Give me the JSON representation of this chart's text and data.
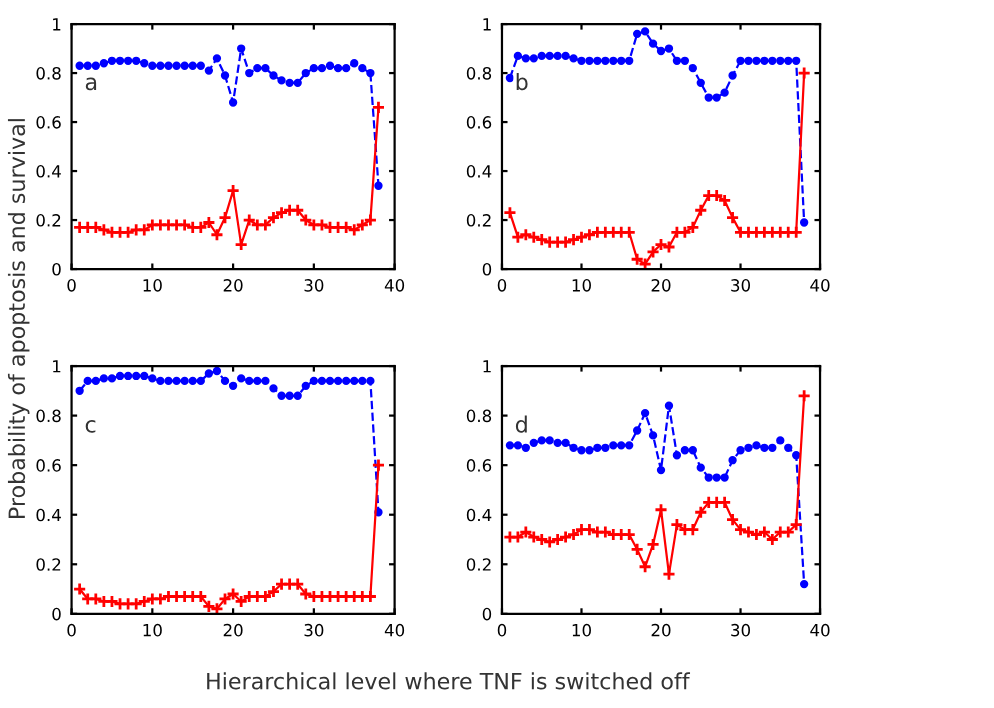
{
  "chart_data": [
    {
      "type": "line",
      "annotations": [
        "a"
      ],
      "xlabel": "Hierarchical level where TNF is switched off",
      "ylabel": "Probability of apoptosis and survival",
      "x": [
        1,
        2,
        3,
        4,
        5,
        6,
        7,
        8,
        9,
        10,
        11,
        12,
        13,
        14,
        15,
        16,
        17,
        18,
        19,
        20,
        21,
        22,
        23,
        24,
        25,
        26,
        27,
        28,
        29,
        30,
        31,
        32,
        33,
        34,
        35,
        36,
        37,
        38
      ],
      "xlim": [
        0,
        40
      ],
      "xticks": [
        0,
        10,
        20,
        30,
        40
      ],
      "ylim": [
        0,
        1
      ],
      "yticks": [
        0,
        0.2,
        0.4,
        0.6,
        0.8,
        1
      ],
      "series": [
        {
          "color": "#0000ff",
          "marker": "circle",
          "line_style": "dashed",
          "values": [
            0.83,
            0.83,
            0.83,
            0.84,
            0.85,
            0.85,
            0.85,
            0.85,
            0.84,
            0.83,
            0.83,
            0.83,
            0.83,
            0.83,
            0.83,
            0.83,
            0.81,
            0.86,
            0.79,
            0.68,
            0.9,
            0.8,
            0.82,
            0.82,
            0.79,
            0.77,
            0.76,
            0.76,
            0.8,
            0.82,
            0.82,
            0.83,
            0.82,
            0.82,
            0.84,
            0.82,
            0.8,
            0.34
          ]
        },
        {
          "color": "#ff0000",
          "marker": "cross",
          "line_style": "solid",
          "values": [
            0.17,
            0.17,
            0.17,
            0.16,
            0.15,
            0.15,
            0.15,
            0.16,
            0.16,
            0.18,
            0.18,
            0.18,
            0.18,
            0.18,
            0.17,
            0.17,
            0.19,
            0.14,
            0.21,
            0.32,
            0.1,
            0.2,
            0.18,
            0.18,
            0.21,
            0.23,
            0.24,
            0.24,
            0.2,
            0.18,
            0.18,
            0.17,
            0.17,
            0.17,
            0.16,
            0.18,
            0.2,
            0.66
          ]
        }
      ]
    },
    {
      "type": "line",
      "annotations": [
        "b"
      ],
      "x": [
        1,
        2,
        3,
        4,
        5,
        6,
        7,
        8,
        9,
        10,
        11,
        12,
        13,
        14,
        15,
        16,
        17,
        18,
        19,
        20,
        21,
        22,
        23,
        24,
        25,
        26,
        27,
        28,
        29,
        30,
        31,
        32,
        33,
        34,
        35,
        36,
        37,
        38
      ],
      "xlim": [
        0,
        40
      ],
      "xticks": [
        0,
        10,
        20,
        30,
        40
      ],
      "ylim": [
        0,
        1
      ],
      "yticks": [
        0,
        0.2,
        0.4,
        0.6,
        0.8,
        1
      ],
      "series": [
        {
          "color": "#0000ff",
          "marker": "circle",
          "line_style": "dashed",
          "values": [
            0.78,
            0.87,
            0.86,
            0.86,
            0.87,
            0.87,
            0.87,
            0.87,
            0.86,
            0.85,
            0.85,
            0.85,
            0.85,
            0.85,
            0.85,
            0.85,
            0.96,
            0.97,
            0.92,
            0.89,
            0.9,
            0.85,
            0.85,
            0.82,
            0.76,
            0.7,
            0.7,
            0.72,
            0.79,
            0.85,
            0.85,
            0.85,
            0.85,
            0.85,
            0.85,
            0.85,
            0.85,
            0.19
          ]
        },
        {
          "color": "#ff0000",
          "marker": "cross",
          "line_style": "solid",
          "values": [
            0.23,
            0.13,
            0.14,
            0.13,
            0.12,
            0.11,
            0.11,
            0.11,
            0.12,
            0.13,
            0.14,
            0.15,
            0.15,
            0.15,
            0.15,
            0.15,
            0.04,
            0.02,
            0.07,
            0.1,
            0.09,
            0.15,
            0.15,
            0.17,
            0.24,
            0.3,
            0.3,
            0.28,
            0.21,
            0.15,
            0.15,
            0.15,
            0.15,
            0.15,
            0.15,
            0.15,
            0.15,
            0.8
          ]
        }
      ]
    },
    {
      "type": "line",
      "annotations": [
        "c"
      ],
      "x": [
        1,
        2,
        3,
        4,
        5,
        6,
        7,
        8,
        9,
        10,
        11,
        12,
        13,
        14,
        15,
        16,
        17,
        18,
        19,
        20,
        21,
        22,
        23,
        24,
        25,
        26,
        27,
        28,
        29,
        30,
        31,
        32,
        33,
        34,
        35,
        36,
        37,
        38
      ],
      "xlim": [
        0,
        40
      ],
      "xticks": [
        0,
        10,
        20,
        30,
        40
      ],
      "ylim": [
        0,
        1
      ],
      "yticks": [
        0,
        0.2,
        0.4,
        0.6,
        0.8,
        1
      ],
      "series": [
        {
          "color": "#0000ff",
          "marker": "circle",
          "line_style": "dashed",
          "values": [
            0.9,
            0.94,
            0.94,
            0.95,
            0.95,
            0.96,
            0.96,
            0.96,
            0.96,
            0.95,
            0.94,
            0.94,
            0.94,
            0.94,
            0.94,
            0.94,
            0.97,
            0.98,
            0.94,
            0.92,
            0.95,
            0.94,
            0.94,
            0.94,
            0.91,
            0.88,
            0.88,
            0.88,
            0.92,
            0.94,
            0.94,
            0.94,
            0.94,
            0.94,
            0.94,
            0.94,
            0.94,
            0.41
          ]
        },
        {
          "color": "#ff0000",
          "marker": "cross",
          "line_style": "solid",
          "values": [
            0.1,
            0.06,
            0.06,
            0.05,
            0.05,
            0.04,
            0.04,
            0.04,
            0.05,
            0.06,
            0.06,
            0.07,
            0.07,
            0.07,
            0.07,
            0.07,
            0.03,
            0.02,
            0.06,
            0.08,
            0.05,
            0.07,
            0.07,
            0.07,
            0.09,
            0.12,
            0.12,
            0.12,
            0.08,
            0.07,
            0.07,
            0.07,
            0.07,
            0.07,
            0.07,
            0.07,
            0.07,
            0.6
          ]
        }
      ]
    },
    {
      "type": "line",
      "annotations": [
        "d"
      ],
      "x": [
        1,
        2,
        3,
        4,
        5,
        6,
        7,
        8,
        9,
        10,
        11,
        12,
        13,
        14,
        15,
        16,
        17,
        18,
        19,
        20,
        21,
        22,
        23,
        24,
        25,
        26,
        27,
        28,
        29,
        30,
        31,
        32,
        33,
        34,
        35,
        36,
        37,
        38
      ],
      "xlim": [
        0,
        40
      ],
      "xticks": [
        0,
        10,
        20,
        30,
        40
      ],
      "ylim": [
        0,
        1
      ],
      "yticks": [
        0,
        0.2,
        0.4,
        0.6,
        0.8,
        1
      ],
      "series": [
        {
          "color": "#0000ff",
          "marker": "circle",
          "line_style": "dashed",
          "values": [
            0.68,
            0.68,
            0.67,
            0.69,
            0.7,
            0.7,
            0.69,
            0.69,
            0.67,
            0.66,
            0.66,
            0.67,
            0.67,
            0.68,
            0.68,
            0.68,
            0.74,
            0.81,
            0.72,
            0.58,
            0.84,
            0.64,
            0.66,
            0.66,
            0.59,
            0.55,
            0.55,
            0.55,
            0.62,
            0.66,
            0.67,
            0.68,
            0.67,
            0.67,
            0.7,
            0.67,
            0.64,
            0.12
          ]
        },
        {
          "color": "#ff0000",
          "marker": "cross",
          "line_style": "solid",
          "values": [
            0.31,
            0.31,
            0.33,
            0.31,
            0.3,
            0.29,
            0.3,
            0.31,
            0.32,
            0.34,
            0.34,
            0.33,
            0.33,
            0.32,
            0.32,
            0.32,
            0.26,
            0.19,
            0.28,
            0.42,
            0.16,
            0.36,
            0.34,
            0.34,
            0.41,
            0.45,
            0.45,
            0.45,
            0.38,
            0.34,
            0.33,
            0.32,
            0.33,
            0.3,
            0.33,
            0.33,
            0.36,
            0.88
          ]
        }
      ]
    }
  ]
}
